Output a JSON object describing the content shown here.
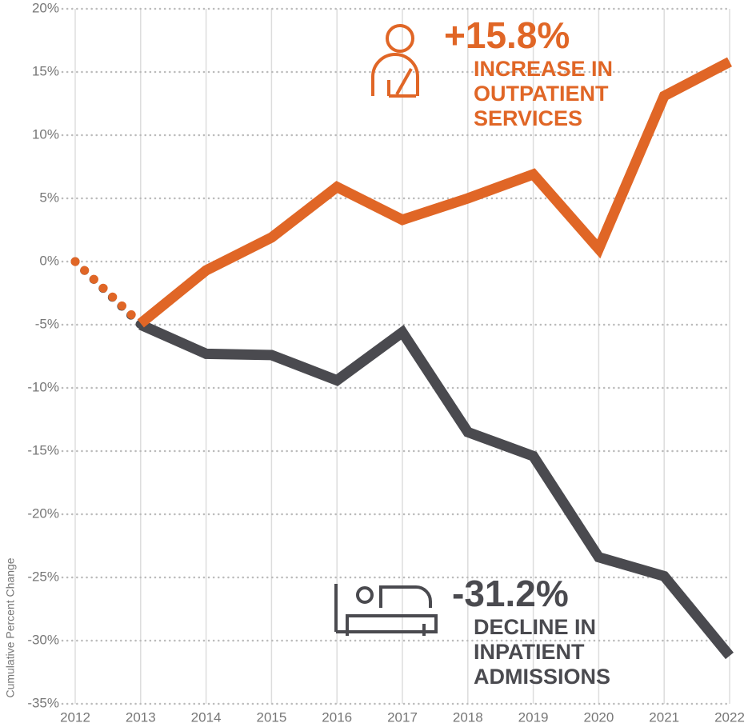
{
  "chart_data": {
    "type": "line",
    "y_label": "Cumulative Percent Change",
    "x": [
      2012,
      2013,
      2014,
      2015,
      2016,
      2017,
      2018,
      2019,
      2020,
      2021,
      2022
    ],
    "series": [
      {
        "name": "Outpatient",
        "color": "#e06626",
        "values": [
          0,
          -4.9,
          -0.7,
          1.9,
          5.9,
          3.3,
          5.0,
          6.9,
          1.0,
          13.1,
          15.8
        ]
      },
      {
        "name": "Inpatient",
        "color": "#4a4a4f",
        "values": [
          0,
          -5.0,
          -7.3,
          -7.4,
          -9.4,
          -5.6,
          -13.5,
          -15.4,
          -23.4,
          -24.9,
          -31.2
        ]
      }
    ],
    "annotations": [
      {
        "value": "+15.8%",
        "lines": [
          "INCREASE IN",
          "OUTPATIENT",
          "SERVICES"
        ]
      },
      {
        "value": "-31.2%",
        "lines": [
          "DECLINE IN",
          "INPATIENT",
          "ADMISSIONS"
        ]
      }
    ],
    "xlim": [
      2012,
      2022
    ],
    "xticks": [
      2012,
      2013,
      2014,
      2015,
      2016,
      2017,
      2018,
      2019,
      2020,
      2021,
      2022
    ],
    "ylim": [
      -35,
      20
    ],
    "yticks": [
      {
        "value": -35,
        "label": "-35%"
      },
      {
        "value": -30,
        "label": "-30%"
      },
      {
        "value": -25,
        "label": "-25%"
      },
      {
        "value": -20,
        "label": "-20%"
      },
      {
        "value": -15,
        "label": "-15%"
      },
      {
        "value": -10,
        "label": "-10%"
      },
      {
        "value": -5,
        "label": "-5%"
      },
      {
        "value": 0,
        "label": "0%"
      },
      {
        "value": 5,
        "label": "5%"
      },
      {
        "value": 10,
        "label": "10%"
      },
      {
        "value": 15,
        "label": "15%"
      },
      {
        "value": 20,
        "label": "20%"
      }
    ],
    "grid": true
  }
}
